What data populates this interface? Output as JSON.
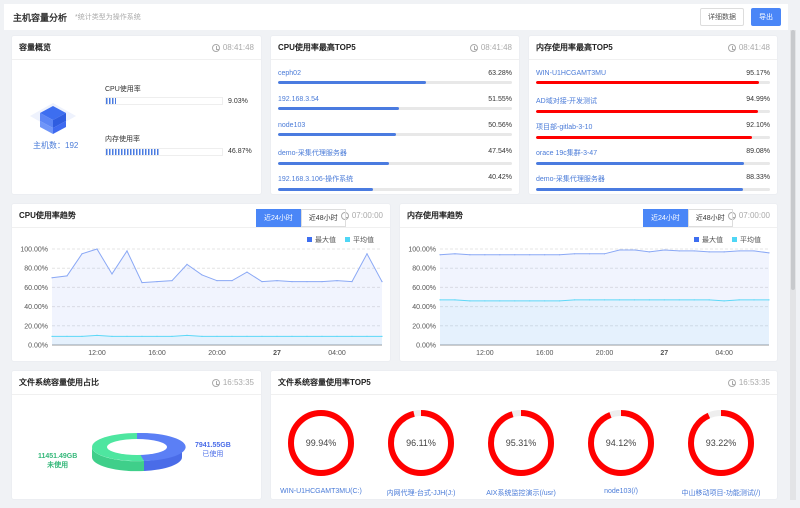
{
  "header": {
    "title": "主机容量分析",
    "subtitle": "*统计类型为操作系统",
    "detail_button": "详细数据",
    "export_button": "导出"
  },
  "overview": {
    "title": "容量概览",
    "time": "08:41:48",
    "host_count": "主机数：192",
    "cpu_label": "CPU使用率",
    "cpu_value": "9.03%",
    "cpu_percent": 9.03,
    "mem_label": "内存使用率",
    "mem_value": "46.87%",
    "mem_percent": 46.87
  },
  "cpu_top5": {
    "title": "CPU使用率最高TOP5",
    "time": "08:41:48",
    "items": [
      {
        "name": "ceph02",
        "value": "63.28%",
        "percent": 63.28
      },
      {
        "name": "192.168.3.54",
        "value": "51.55%",
        "percent": 51.55
      },
      {
        "name": "node103",
        "value": "50.56%",
        "percent": 50.56
      },
      {
        "name": "demo-采集代理服务器",
        "value": "47.54%",
        "percent": 47.54
      },
      {
        "name": "192.168.3.106-操作系统",
        "value": "40.42%",
        "percent": 40.42
      }
    ]
  },
  "mem_top5": {
    "title": "内存使用率最高TOP5",
    "time": "08:41:48",
    "items": [
      {
        "name": "WIN-U1HCGAMT3MU",
        "value": "95.17%",
        "percent": 95.17,
        "color": "#ff0000"
      },
      {
        "name": "AD域对接-开发测试",
        "value": "94.99%",
        "percent": 94.99,
        "color": "#ff0000"
      },
      {
        "name": "项目部-gitlab-3-10",
        "value": "92.10%",
        "percent": 92.1,
        "color": "#ff0000"
      },
      {
        "name": "orace 19c集群-3-47",
        "value": "89.08%",
        "percent": 89.08,
        "color": "#4a7be0"
      },
      {
        "name": "demo-采集代理服务器",
        "value": "88.33%",
        "percent": 88.33,
        "color": "#4a7be0"
      }
    ]
  },
  "cpu_trend": {
    "title": "CPU使用率趋势",
    "tab_24": "近24小时",
    "tab_48": "近48小时",
    "time": "07:00:00"
  },
  "mem_trend": {
    "title": "内存使用率趋势",
    "tab_24": "近24小时",
    "tab_48": "近48小时",
    "time": "07:00:00"
  },
  "fs_ratio": {
    "title": "文件系统容量使用占比",
    "time": "16:53:35",
    "used_value": "7941.55GB",
    "used_label": "已使用",
    "free_value": "11451.49GB",
    "free_label": "未使用",
    "colors": {
      "used": "#5b7ff5",
      "free": "#4ee6a0"
    }
  },
  "fs_top5": {
    "title": "文件系统容量使用率TOP5",
    "time": "16:53:35",
    "items": [
      {
        "name": "WIN-U1HCGAMT3MU(C:)",
        "value": "99.94%",
        "percent": 99.94
      },
      {
        "name": "内网代理-台式-JJH(J:)",
        "value": "96.11%",
        "percent": 96.11
      },
      {
        "name": "AIX系统监控演示(/usr)",
        "value": "95.31%",
        "percent": 95.31
      },
      {
        "name": "node103(/)",
        "value": "94.12%",
        "percent": 94.12
      },
      {
        "name": "中山移动项目-功能测试(/)",
        "value": "93.22%",
        "percent": 93.22
      }
    ]
  },
  "chart_data": [
    {
      "type": "area",
      "x_ticks": [
        "12:00",
        "16:00",
        "20:00",
        "27",
        "04:00"
      ],
      "y_ticks": [
        "0.00%",
        "20.00%",
        "40.00%",
        "60.00%",
        "80.00%",
        "100.00%"
      ],
      "ylim": [
        0,
        100
      ],
      "legend": "top-right",
      "grid": true,
      "x": [
        "09:00",
        "10:00",
        "11:00",
        "12:00",
        "13:00",
        "14:00",
        "15:00",
        "16:00",
        "17:00",
        "18:00",
        "19:00",
        "20:00",
        "21:00",
        "22:00",
        "23:00",
        "00:00",
        "01:00",
        "02:00",
        "03:00",
        "04:00",
        "05:00",
        "06:00",
        "07:00"
      ],
      "series": [
        {
          "name": "最大值",
          "color": "#8aa8f5",
          "values": [
            70,
            72,
            95,
            100,
            74,
            98,
            65,
            66,
            67,
            84,
            73,
            67,
            67,
            76,
            66,
            67,
            66,
            66,
            66,
            67,
            66,
            95,
            66
          ]
        },
        {
          "name": "平均值",
          "color": "#5dd8f7",
          "values": [
            9,
            9,
            9,
            10,
            9,
            9,
            9,
            9,
            9,
            10,
            9,
            9,
            9,
            9,
            9,
            9,
            9,
            9,
            9,
            9,
            9,
            9,
            9
          ]
        }
      ]
    },
    {
      "type": "area",
      "x_ticks": [
        "12:00",
        "16:00",
        "20:00",
        "27",
        "04:00"
      ],
      "y_ticks": [
        "0.00%",
        "20.00%",
        "40.00%",
        "60.00%",
        "80.00%",
        "100.00%"
      ],
      "ylim": [
        0,
        100
      ],
      "legend": "top-right",
      "grid": true,
      "x": [
        "09:00",
        "10:00",
        "11:00",
        "12:00",
        "13:00",
        "14:00",
        "15:00",
        "16:00",
        "17:00",
        "18:00",
        "19:00",
        "20:00",
        "21:00",
        "22:00",
        "23:00",
        "00:00",
        "01:00",
        "02:00",
        "03:00",
        "04:00",
        "05:00",
        "06:00",
        "07:00"
      ],
      "series": [
        {
          "name": "最大值",
          "color": "#8aa8f5",
          "values": [
            94,
            95,
            94,
            94,
            94,
            94,
            94,
            94,
            94,
            95,
            95,
            95,
            99,
            99,
            97,
            99,
            98,
            98,
            97,
            97,
            98,
            98,
            96
          ]
        },
        {
          "name": "平均值",
          "color": "#5dd8f7",
          "values": [
            47,
            47,
            46,
            46,
            46,
            46,
            46,
            46,
            46,
            47,
            47,
            47,
            47,
            47,
            47,
            47,
            47,
            47,
            47,
            46,
            47,
            47,
            47
          ]
        }
      ]
    }
  ]
}
